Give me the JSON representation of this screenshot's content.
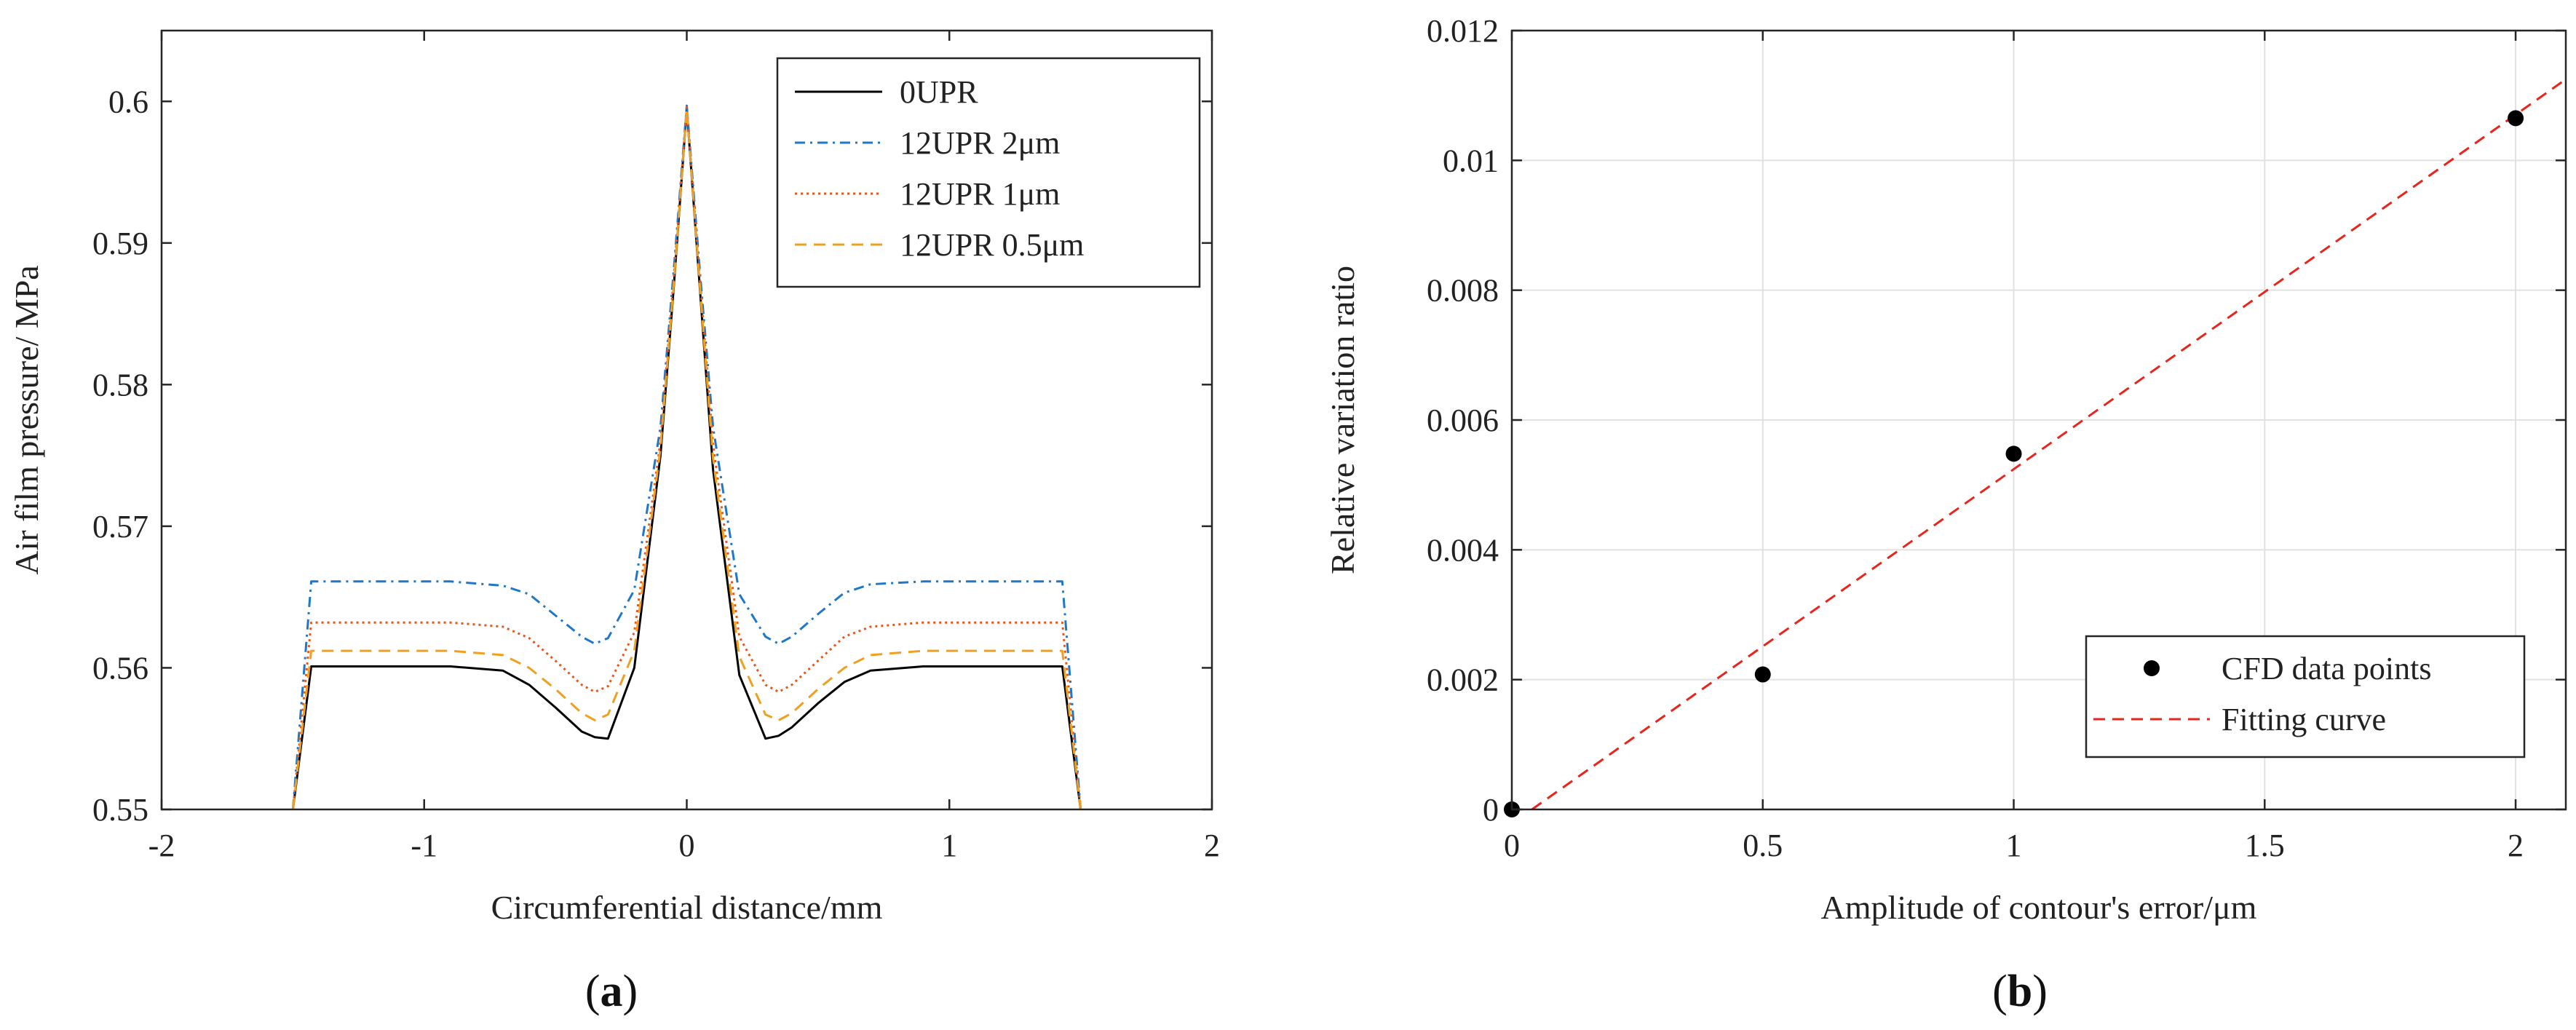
{
  "chart_data": [
    {
      "type": "line",
      "panel": "a",
      "caption_open": "(",
      "caption_letter": "a",
      "caption_close": ")",
      "title": "",
      "xlabel": "Circumferential distance/mm",
      "ylabel": "Air film pressure/ MPa",
      "xlim": [
        -2,
        2
      ],
      "ylim": [
        0.55,
        0.605
      ],
      "xticks": [
        -2,
        -1,
        0,
        1,
        2
      ],
      "xtick_labels": [
        "-2",
        "-1",
        "0",
        "1",
        "2"
      ],
      "yticks": [
        0.55,
        0.56,
        0.57,
        0.58,
        0.59,
        0.6
      ],
      "ytick_labels": [
        "0.55",
        "0.56",
        "0.57",
        "0.58",
        "0.59",
        "0.6"
      ],
      "grid": false,
      "legend_position": "top-right",
      "series": [
        {
          "name": "0UPR",
          "color": "#000000",
          "dash": "solid",
          "x": [
            -1.5,
            -1.43,
            -1.2,
            -0.9,
            -0.7,
            -0.6,
            -0.5,
            -0.4,
            -0.35,
            -0.3,
            -0.2,
            -0.1,
            -0.05,
            0,
            0.05,
            0.1,
            0.2,
            0.3,
            0.35,
            0.4,
            0.5,
            0.6,
            0.7,
            0.9,
            1.2,
            1.43,
            1.5
          ],
          "y": [
            0.55,
            0.5601,
            0.5601,
            0.5601,
            0.5598,
            0.5588,
            0.5572,
            0.5555,
            0.5551,
            0.555,
            0.56,
            0.575,
            0.5868,
            0.5995,
            0.5868,
            0.574,
            0.5595,
            0.555,
            0.5552,
            0.5558,
            0.5575,
            0.559,
            0.5598,
            0.5601,
            0.5601,
            0.5601,
            0.55
          ]
        },
        {
          "name": "12UPR 2μm",
          "color": "#1f77c8",
          "dash": "dashdot",
          "x": [
            -1.5,
            -1.43,
            -1.2,
            -0.9,
            -0.7,
            -0.6,
            -0.5,
            -0.4,
            -0.35,
            -0.3,
            -0.2,
            -0.1,
            -0.05,
            0,
            0.05,
            0.1,
            0.2,
            0.3,
            0.35,
            0.4,
            0.5,
            0.6,
            0.7,
            0.9,
            1.2,
            1.43,
            1.5
          ],
          "y": [
            0.55,
            0.5661,
            0.5661,
            0.5661,
            0.5658,
            0.5652,
            0.5637,
            0.5622,
            0.5617,
            0.5621,
            0.5655,
            0.577,
            0.588,
            0.5997,
            0.588,
            0.577,
            0.5652,
            0.5622,
            0.5617,
            0.5622,
            0.5638,
            0.5653,
            0.5659,
            0.5661,
            0.5661,
            0.5661,
            0.55
          ]
        },
        {
          "name": "12UPR 1μm",
          "color": "#e8561c",
          "dash": "dotted",
          "x": [
            -1.5,
            -1.43,
            -1.2,
            -0.9,
            -0.7,
            -0.6,
            -0.5,
            -0.4,
            -0.35,
            -0.3,
            -0.2,
            -0.1,
            -0.05,
            0,
            0.05,
            0.1,
            0.2,
            0.3,
            0.35,
            0.4,
            0.5,
            0.6,
            0.7,
            0.9,
            1.2,
            1.43,
            1.5
          ],
          "y": [
            0.55,
            0.5632,
            0.5632,
            0.5632,
            0.5629,
            0.5621,
            0.5605,
            0.5588,
            0.5583,
            0.5587,
            0.5625,
            0.576,
            0.5875,
            0.5996,
            0.5875,
            0.5758,
            0.5622,
            0.5588,
            0.5583,
            0.5588,
            0.5605,
            0.5622,
            0.5629,
            0.5632,
            0.5632,
            0.5632,
            0.55
          ]
        },
        {
          "name": "12UPR 0.5μm",
          "color": "#f0a020",
          "dash": "dashed",
          "x": [
            -1.5,
            -1.43,
            -1.2,
            -0.9,
            -0.7,
            -0.6,
            -0.5,
            -0.4,
            -0.35,
            -0.3,
            -0.2,
            -0.1,
            -0.05,
            0,
            0.05,
            0.1,
            0.2,
            0.3,
            0.35,
            0.4,
            0.5,
            0.6,
            0.7,
            0.9,
            1.2,
            1.43,
            1.5
          ],
          "y": [
            0.55,
            0.5612,
            0.5612,
            0.5612,
            0.5609,
            0.56,
            0.5585,
            0.5568,
            0.5563,
            0.5567,
            0.5612,
            0.5755,
            0.587,
            0.5995,
            0.587,
            0.5748,
            0.5608,
            0.5567,
            0.5563,
            0.5568,
            0.5585,
            0.56,
            0.5609,
            0.5612,
            0.5612,
            0.5612,
            0.55
          ]
        }
      ]
    },
    {
      "type": "scatter",
      "panel": "b",
      "caption_open": "(",
      "caption_letter": "b",
      "caption_close": ")",
      "title": "",
      "xlabel": "Amplitude of contour's error/μm",
      "ylabel": "Relative variation ratio",
      "xlim": [
        0,
        2.1
      ],
      "ylim": [
        0,
        0.012
      ],
      "xticks": [
        0,
        0.5,
        1,
        1.5,
        2
      ],
      "xtick_labels": [
        "0",
        "0.5",
        "1",
        "1.5",
        "2"
      ],
      "yticks": [
        0,
        0.002,
        0.004,
        0.006,
        0.008,
        0.01,
        0.012
      ],
      "ytick_labels": [
        "0",
        "0.002",
        "0.004",
        "0.006",
        "0.008",
        "0.01",
        "0.012"
      ],
      "grid": true,
      "legend_position": "bottom-right",
      "series": [
        {
          "name": "CFD data points",
          "kind": "points",
          "color": "#000000",
          "x": [
            0,
            0.5,
            1,
            2
          ],
          "y": [
            0,
            0.00208,
            0.00548,
            0.01065
          ]
        },
        {
          "name": "Fitting curve",
          "kind": "line",
          "color": "#e8251c",
          "dash": "dashed",
          "x": [
            0.04,
            2.1
          ],
          "y": [
            0,
            0.01125
          ]
        }
      ]
    }
  ]
}
